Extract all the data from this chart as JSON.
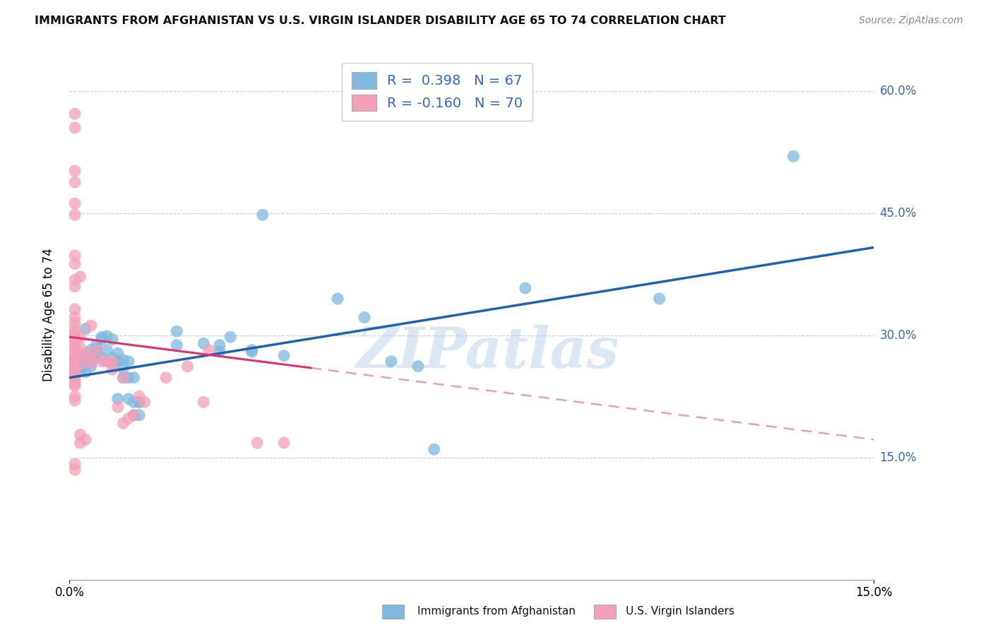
{
  "title": "IMMIGRANTS FROM AFGHANISTAN VS U.S. VIRGIN ISLANDER DISABILITY AGE 65 TO 74 CORRELATION CHART",
  "source": "Source: ZipAtlas.com",
  "ylabel": "Disability Age 65 to 74",
  "xmin": 0.0,
  "xmax": 0.15,
  "ymin": 0.0,
  "ymax": 0.65,
  "yticks": [
    0.0,
    0.15,
    0.3,
    0.45,
    0.6
  ],
  "ytick_labels": [
    "",
    "15.0%",
    "30.0%",
    "45.0%",
    "60.0%"
  ],
  "blue_color": "#7fb9e0",
  "pink_color": "#f4a0b8",
  "blue_line_color": "#2060b0",
  "pink_line_color": "#e03070",
  "pink_dash_color": "#e8a0b8",
  "watermark": "ZIPatlas",
  "legend_label1": "Immigrants from Afghanistan",
  "legend_label2": "U.S. Virgin Islanders",
  "blue_scatter": [
    [
      0.001,
      0.255
    ],
    [
      0.001,
      0.26
    ],
    [
      0.001,
      0.268
    ],
    [
      0.001,
      0.25
    ],
    [
      0.002,
      0.258
    ],
    [
      0.002,
      0.265
    ],
    [
      0.002,
      0.272
    ],
    [
      0.002,
      0.26
    ],
    [
      0.003,
      0.262
    ],
    [
      0.003,
      0.27
    ],
    [
      0.003,
      0.255
    ],
    [
      0.003,
      0.278
    ],
    [
      0.003,
      0.308
    ],
    [
      0.004,
      0.262
    ],
    [
      0.004,
      0.268
    ],
    [
      0.004,
      0.282
    ],
    [
      0.004,
      0.275
    ],
    [
      0.005,
      0.278
    ],
    [
      0.005,
      0.275
    ],
    [
      0.005,
      0.288
    ],
    [
      0.005,
      0.283
    ],
    [
      0.006,
      0.295
    ],
    [
      0.006,
      0.298
    ],
    [
      0.006,
      0.272
    ],
    [
      0.007,
      0.268
    ],
    [
      0.007,
      0.282
    ],
    [
      0.007,
      0.299
    ],
    [
      0.008,
      0.295
    ],
    [
      0.008,
      0.272
    ],
    [
      0.008,
      0.265
    ],
    [
      0.009,
      0.222
    ],
    [
      0.009,
      0.268
    ],
    [
      0.009,
      0.278
    ],
    [
      0.01,
      0.26
    ],
    [
      0.01,
      0.248
    ],
    [
      0.01,
      0.27
    ],
    [
      0.011,
      0.222
    ],
    [
      0.011,
      0.268
    ],
    [
      0.011,
      0.248
    ],
    [
      0.012,
      0.248
    ],
    [
      0.012,
      0.202
    ],
    [
      0.012,
      0.218
    ],
    [
      0.013,
      0.218
    ],
    [
      0.013,
      0.202
    ],
    [
      0.013,
      0.218
    ],
    [
      0.02,
      0.288
    ],
    [
      0.02,
      0.305
    ],
    [
      0.025,
      0.29
    ],
    [
      0.028,
      0.28
    ],
    [
      0.028,
      0.288
    ],
    [
      0.03,
      0.298
    ],
    [
      0.034,
      0.282
    ],
    [
      0.034,
      0.28
    ],
    [
      0.036,
      0.448
    ],
    [
      0.04,
      0.275
    ],
    [
      0.05,
      0.345
    ],
    [
      0.055,
      0.322
    ],
    [
      0.06,
      0.268
    ],
    [
      0.065,
      0.262
    ],
    [
      0.068,
      0.16
    ],
    [
      0.085,
      0.358
    ],
    [
      0.11,
      0.345
    ],
    [
      0.135,
      0.52
    ]
  ],
  "pink_scatter": [
    [
      0.001,
      0.572
    ],
    [
      0.001,
      0.555
    ],
    [
      0.001,
      0.502
    ],
    [
      0.001,
      0.488
    ],
    [
      0.001,
      0.462
    ],
    [
      0.001,
      0.448
    ],
    [
      0.001,
      0.398
    ],
    [
      0.001,
      0.388
    ],
    [
      0.001,
      0.368
    ],
    [
      0.001,
      0.36
    ],
    [
      0.001,
      0.332
    ],
    [
      0.001,
      0.322
    ],
    [
      0.001,
      0.315
    ],
    [
      0.001,
      0.308
    ],
    [
      0.001,
      0.302
    ],
    [
      0.001,
      0.298
    ],
    [
      0.001,
      0.292
    ],
    [
      0.001,
      0.288
    ],
    [
      0.001,
      0.285
    ],
    [
      0.001,
      0.28
    ],
    [
      0.001,
      0.275
    ],
    [
      0.001,
      0.272
    ],
    [
      0.001,
      0.268
    ],
    [
      0.001,
      0.262
    ],
    [
      0.001,
      0.258
    ],
    [
      0.001,
      0.255
    ],
    [
      0.001,
      0.25
    ],
    [
      0.001,
      0.245
    ],
    [
      0.001,
      0.24
    ],
    [
      0.001,
      0.238
    ],
    [
      0.001,
      0.225
    ],
    [
      0.001,
      0.22
    ],
    [
      0.001,
      0.142
    ],
    [
      0.001,
      0.135
    ],
    [
      0.002,
      0.372
    ],
    [
      0.002,
      0.298
    ],
    [
      0.002,
      0.285
    ],
    [
      0.002,
      0.275
    ],
    [
      0.002,
      0.265
    ],
    [
      0.002,
      0.178
    ],
    [
      0.002,
      0.168
    ],
    [
      0.003,
      0.278
    ],
    [
      0.003,
      0.172
    ],
    [
      0.004,
      0.312
    ],
    [
      0.004,
      0.272
    ],
    [
      0.004,
      0.265
    ],
    [
      0.005,
      0.282
    ],
    [
      0.006,
      0.268
    ],
    [
      0.007,
      0.268
    ],
    [
      0.008,
      0.268
    ],
    [
      0.008,
      0.258
    ],
    [
      0.009,
      0.212
    ],
    [
      0.01,
      0.248
    ],
    [
      0.01,
      0.192
    ],
    [
      0.011,
      0.198
    ],
    [
      0.012,
      0.202
    ],
    [
      0.013,
      0.225
    ],
    [
      0.014,
      0.218
    ],
    [
      0.018,
      0.248
    ],
    [
      0.022,
      0.262
    ],
    [
      0.025,
      0.218
    ],
    [
      0.026,
      0.282
    ],
    [
      0.035,
      0.168
    ],
    [
      0.04,
      0.168
    ]
  ],
  "blue_trendline": [
    [
      0.0,
      0.248
    ],
    [
      0.15,
      0.408
    ]
  ],
  "pink_trendline_solid": [
    [
      0.0,
      0.298
    ],
    [
      0.045,
      0.26
    ]
  ],
  "pink_trendline_dash": [
    [
      0.045,
      0.26
    ],
    [
      0.15,
      0.172
    ]
  ]
}
